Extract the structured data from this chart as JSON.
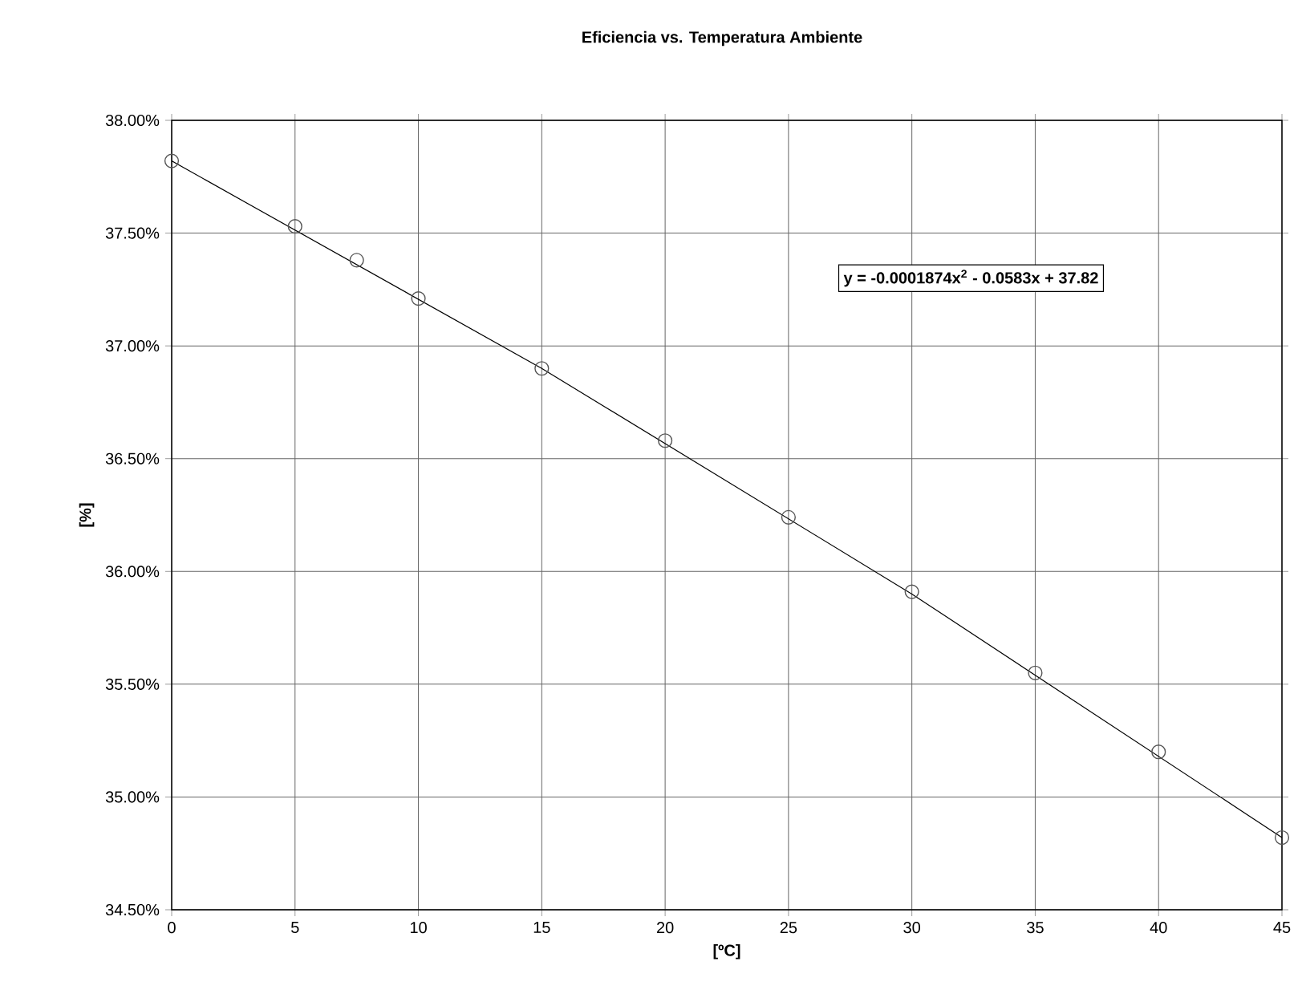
{
  "chart_data": {
    "type": "scatter",
    "title": "Eficiencia vs. Temperatura Ambiente",
    "xlabel": "[ºC]",
    "ylabel": "[%]",
    "series": [
      {
        "marker": "circle",
        "color": "#555555",
        "x": [
          0,
          5,
          7.5,
          10,
          15,
          20,
          25,
          30,
          35,
          40,
          45
        ],
        "values": [
          37.82,
          37.53,
          37.38,
          37.21,
          36.9,
          36.58,
          36.24,
          35.91,
          35.55,
          35.2,
          34.82
        ]
      },
      {
        "type": "line",
        "marker": "none",
        "color": "#000000",
        "x": [
          0,
          15,
          30,
          45
        ],
        "values": [
          37.82,
          36.9,
          35.9,
          34.82
        ]
      }
    ],
    "grid": true,
    "xlim": [
      0,
      45
    ],
    "xticks": [
      0,
      5,
      10,
      15,
      20,
      25,
      30,
      35,
      40,
      45
    ],
    "ylim": [
      34.5,
      38
    ],
    "yticks": [
      {
        "value": 34.5,
        "label": "34.50%"
      },
      {
        "value": 35,
        "label": "35.00%"
      },
      {
        "value": 35.5,
        "label": "35.50%"
      },
      {
        "value": 36,
        "label": "36.00%"
      },
      {
        "value": 36.5,
        "label": "36.50%"
      },
      {
        "value": 37,
        "label": "37.00%"
      },
      {
        "value": 37.5,
        "label": "37.50%"
      },
      {
        "value": 38,
        "label": "38.00%"
      }
    ],
    "annotations": [
      "y = -0.0001874x$^{2}$ - 0.0583x + 37.82"
    ]
  }
}
